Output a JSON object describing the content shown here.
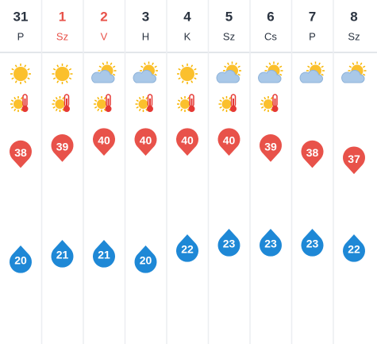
{
  "days": [
    {
      "date": "31",
      "weekday": "P",
      "weekend": false,
      "weather": "sunny",
      "heat_warning": true,
      "max": 38,
      "min": 20
    },
    {
      "date": "1",
      "weekday": "Sz",
      "weekend": true,
      "weather": "sunny",
      "heat_warning": true,
      "max": 39,
      "min": 21
    },
    {
      "date": "2",
      "weekday": "V",
      "weekend": true,
      "weather": "partly-cloudy",
      "heat_warning": true,
      "max": 40,
      "min": 21
    },
    {
      "date": "3",
      "weekday": "H",
      "weekend": false,
      "weather": "partly-cloudy",
      "heat_warning": true,
      "max": 40,
      "min": 20
    },
    {
      "date": "4",
      "weekday": "K",
      "weekend": false,
      "weather": "sunny",
      "heat_warning": true,
      "max": 40,
      "min": 22
    },
    {
      "date": "5",
      "weekday": "Sz",
      "weekend": false,
      "weather": "partly-cloudy",
      "heat_warning": true,
      "max": 40,
      "min": 23
    },
    {
      "date": "6",
      "weekday": "Cs",
      "weekend": false,
      "weather": "partly-cloudy",
      "heat_warning": true,
      "max": 39,
      "min": 23
    },
    {
      "date": "7",
      "weekday": "P",
      "weekend": false,
      "weather": "partly-cloudy",
      "heat_warning": false,
      "max": 38,
      "min": 23
    },
    {
      "date": "8",
      "weekday": "Sz",
      "weekend": false,
      "weather": "partly-cloudy",
      "heat_warning": false,
      "max": 37,
      "min": 22
    }
  ]
}
